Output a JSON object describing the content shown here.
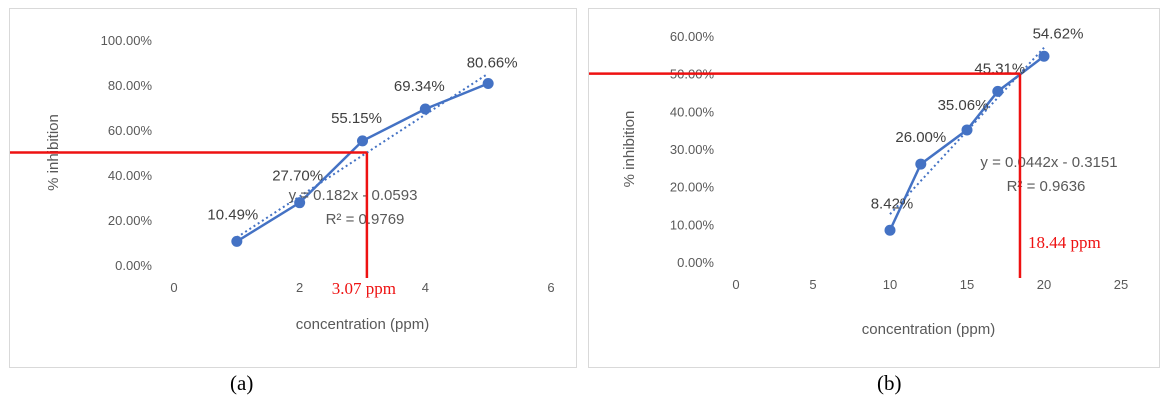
{
  "chart_data": [
    {
      "type": "scatter",
      "panel_label": "(a)",
      "xlabel": "concentration (ppm)",
      "ylabel": "% inhibition",
      "xlim": [
        0,
        6
      ],
      "ylim": [
        0,
        100
      ],
      "xticks": [
        0,
        2,
        4,
        6
      ],
      "xtick_labels": [
        "0",
        "2",
        "4",
        "6"
      ],
      "yticks": [
        0,
        20,
        40,
        60,
        80,
        100
      ],
      "ytick_labels": [
        "0.00%",
        "20.00%",
        "40.00%",
        "60.00%",
        "80.00%",
        "100.00%"
      ],
      "series": [
        {
          "x": [
            1,
            2,
            3,
            4,
            5
          ],
          "values": [
            10.49,
            27.7,
            55.15,
            69.34,
            80.66
          ],
          "data_labels": [
            "10.49%",
            "27.70%",
            "55.15%",
            "69.34%",
            "80.66%"
          ],
          "color": "#4472c4"
        }
      ],
      "trendline": {
        "slope": 0.182,
        "intercept": -0.0593,
        "scale": 100
      },
      "equation": "y = 0.182x - 0.0593",
      "r_squared": "R² = 0.9769",
      "ic50": {
        "x": 3.07,
        "y": 50,
        "label": "3.07 ppm",
        "color": "#ee1111"
      },
      "grid": false
    },
    {
      "type": "scatter",
      "panel_label": "(b)",
      "xlabel": "concentration (ppm)",
      "ylabel": "% inhibition",
      "xlim": [
        0,
        25
      ],
      "ylim": [
        0,
        60
      ],
      "xticks": [
        0,
        5,
        10,
        15,
        20,
        25
      ],
      "xtick_labels": [
        "0",
        "5",
        "10",
        "15",
        "20",
        "25"
      ],
      "yticks": [
        0,
        10,
        20,
        30,
        40,
        50,
        60
      ],
      "ytick_labels": [
        "0.00%",
        "10.00%",
        "20.00%",
        "30.00%",
        "40.00%",
        "50.00%",
        "60.00%"
      ],
      "series": [
        {
          "x": [
            10,
            12,
            15,
            17,
            20
          ],
          "values": [
            8.42,
            26.0,
            35.06,
            45.31,
            54.62
          ],
          "data_labels": [
            "8.42%",
            "26.00%",
            "35.06%",
            "45.31%",
            "54.62%"
          ],
          "color": "#4472c4"
        }
      ],
      "trendline": {
        "slope": 0.0442,
        "intercept": -0.3151,
        "scale": 100
      },
      "equation": "y = 0.0442x - 0.3151",
      "r_squared": "R² = 0.9636",
      "ic50": {
        "x": 18.44,
        "y": 50,
        "label": "18.44 ppm",
        "color": "#ee1111"
      },
      "grid": false
    }
  ]
}
